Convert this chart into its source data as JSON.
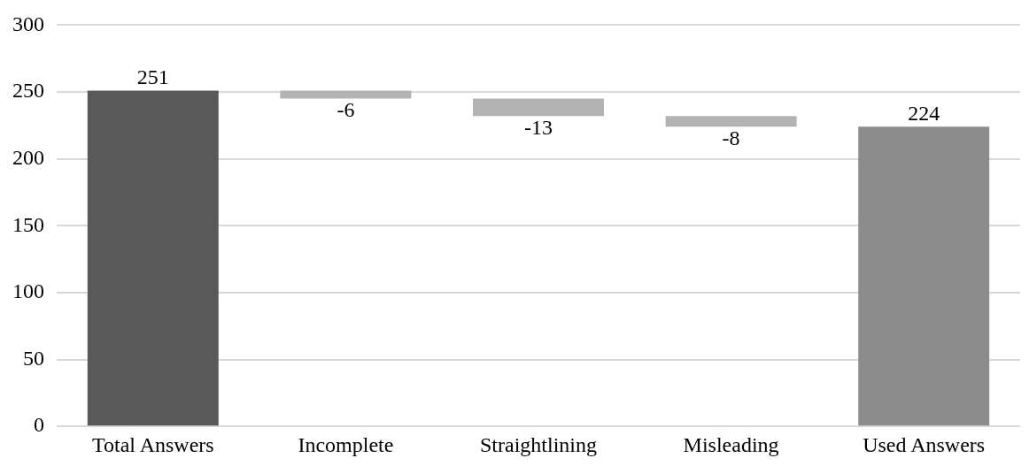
{
  "chart_data": {
    "type": "bar",
    "categories": [
      "Total Answers",
      "Incomplete",
      "Straightlining",
      "Misleading",
      "Used Answers"
    ],
    "values": [
      251,
      -6,
      -13,
      -8,
      224
    ],
    "base": [
      0,
      251,
      245,
      232,
      0
    ],
    "colors": [
      "#595959",
      "#b3b3b3",
      "#b3b3b3",
      "#b3b3b3",
      "#8c8c8c"
    ],
    "ylim": [
      0,
      300
    ],
    "yticks": [
      0,
      50,
      100,
      150,
      200,
      250,
      300
    ],
    "grid": "y",
    "legend": false,
    "data_labels": true
  }
}
